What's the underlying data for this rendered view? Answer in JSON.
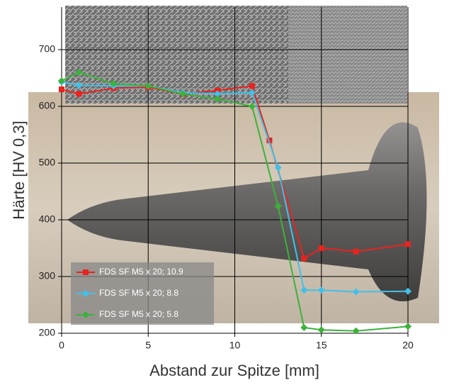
{
  "chart_data": {
    "type": "line",
    "y_label": "Härte [HV 0,3]",
    "x_label": "Abstand zur Spitze [mm]",
    "xlim": [
      0,
      20
    ],
    "xticks": [
      0,
      5,
      10,
      15,
      20
    ],
    "ylim": [
      200,
      775
    ],
    "yticks": [
      200,
      300,
      400,
      500,
      600,
      700
    ],
    "grid": true,
    "series": [
      {
        "name": "FDS SF M5 x 20; 10.9",
        "color": "#e8231f",
        "marker": "square",
        "x": [
          0,
          1,
          3,
          5,
          7,
          9,
          11,
          12,
          14,
          15,
          17,
          20
        ],
        "values": [
          630,
          622,
          632,
          634,
          622,
          628,
          636,
          540,
          332,
          350,
          344,
          357
        ]
      },
      {
        "name": "FDS SF M5 x 20; 8.8",
        "color": "#41c0e8",
        "marker": "diamond",
        "x": [
          0,
          1,
          3,
          5,
          7,
          9,
          11,
          12.5,
          14,
          15,
          17,
          20
        ],
        "values": [
          643,
          637,
          636,
          636,
          624,
          622,
          624,
          492,
          276,
          276,
          273,
          274
        ]
      },
      {
        "name": "FDS SF M5 x 20; 5.8",
        "color": "#3cb23c",
        "marker": "diamond",
        "x": [
          0,
          1,
          3,
          5,
          7,
          9,
          11,
          12.5,
          14,
          15,
          17,
          20
        ],
        "values": [
          645,
          660,
          640,
          636,
          622,
          613,
          600,
          424,
          210,
          206,
          204,
          212
        ]
      }
    ]
  }
}
